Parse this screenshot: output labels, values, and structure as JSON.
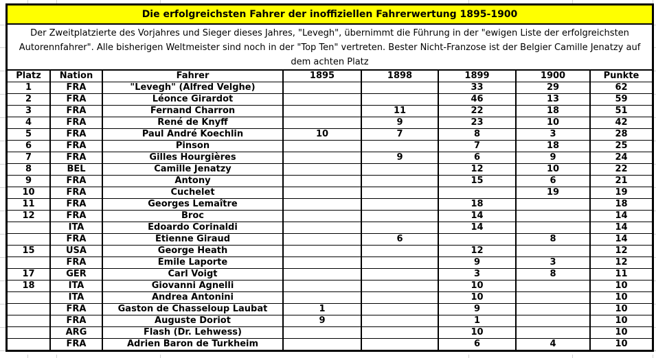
{
  "colors": {
    "title_background": "#ffff00",
    "border": "#000000",
    "text": "#000000",
    "sheet_gridline": "#d0d0d0",
    "page_background": "#ffffff"
  },
  "title_bar": {
    "text": "Die erfolgreichsten Fahrer der inoffiziellen Fahrerwertung 1895-1900"
  },
  "description": {
    "text": "Der Zweitplatzierte des Vorjahres und Sieger dieses Jahres, \"Levegh\", übernimmt die Führung in der \"ewigen Liste der erfolgreichsten Autorennfahrer\". Alle bisherigen Weltmeister sind noch in der \"Top Ten\" vertreten. Bester Nicht-Franzose ist der Belgier Camille Jenatzy auf dem achten Platz"
  },
  "chart_data": {
    "type": "table",
    "title": "Die erfolgreichsten Fahrer der inoffiziellen Fahrerwertung 1895-1900",
    "columns": [
      "Platz",
      "Nation",
      "Fahrer",
      "1895",
      "1898",
      "1899",
      "1900",
      "Punkte"
    ],
    "rows": [
      [
        "1",
        "FRA",
        "\"Levegh\" (Alfred Velghe)",
        "",
        "",
        "33",
        "29",
        "62"
      ],
      [
        "2",
        "FRA",
        "Léonce Girardot",
        "",
        "",
        "46",
        "13",
        "59"
      ],
      [
        "3",
        "FRA",
        "Fernand Charron",
        "",
        "11",
        "22",
        "18",
        "51"
      ],
      [
        "4",
        "FRA",
        "René de Knyff",
        "",
        "9",
        "23",
        "10",
        "42"
      ],
      [
        "5",
        "FRA",
        "Paul André Koechlin",
        "10",
        "7",
        "8",
        "3",
        "28"
      ],
      [
        "6",
        "FRA",
        "Pinson",
        "",
        "",
        "7",
        "18",
        "25"
      ],
      [
        "7",
        "FRA",
        "Gilles Hourgières",
        "",
        "9",
        "6",
        "9",
        "24"
      ],
      [
        "8",
        "BEL",
        "Camille Jenatzy",
        "",
        "",
        "12",
        "10",
        "22"
      ],
      [
        "9",
        "FRA",
        "Antony",
        "",
        "",
        "15",
        "6",
        "21"
      ],
      [
        "10",
        "FRA",
        "Cuchelet",
        "",
        "",
        "",
        "19",
        "19"
      ],
      [
        "11",
        "FRA",
        "Georges Lemaître",
        "",
        "",
        "18",
        "",
        "18"
      ],
      [
        "12",
        "FRA",
        "Broc",
        "",
        "",
        "14",
        "",
        "14"
      ],
      [
        "",
        "ITA",
        "Edoardo Corinaldi",
        "",
        "",
        "14",
        "",
        "14"
      ],
      [
        "",
        "FRA",
        "Étienne Giraud",
        "",
        "6",
        "",
        "8",
        "14"
      ],
      [
        "15",
        "USA",
        "George Heath",
        "",
        "",
        "12",
        "",
        "12"
      ],
      [
        "",
        "FRA",
        "Émile Laporte",
        "",
        "",
        "9",
        "3",
        "12"
      ],
      [
        "17",
        "GER",
        "Carl Voigt",
        "",
        "",
        "3",
        "8",
        "11"
      ],
      [
        "18",
        "ITA",
        "Giovanni Agnelli",
        "",
        "",
        "10",
        "",
        "10"
      ],
      [
        "",
        "ITA",
        "Andrea Antonini",
        "",
        "",
        "10",
        "",
        "10"
      ],
      [
        "",
        "FRA",
        "Gaston de Chasseloup Laubat",
        "1",
        "",
        "9",
        "",
        "10"
      ],
      [
        "",
        "FRA",
        "Auguste Doriot",
        "9",
        "",
        "1",
        "",
        "10"
      ],
      [
        "",
        "ARG",
        "Flash (Dr. Lehwess)",
        "",
        "",
        "10",
        "",
        "10"
      ],
      [
        "",
        "FRA",
        "Adrien Baron de Turkheim",
        "",
        "",
        "6",
        "4",
        "10"
      ]
    ]
  }
}
